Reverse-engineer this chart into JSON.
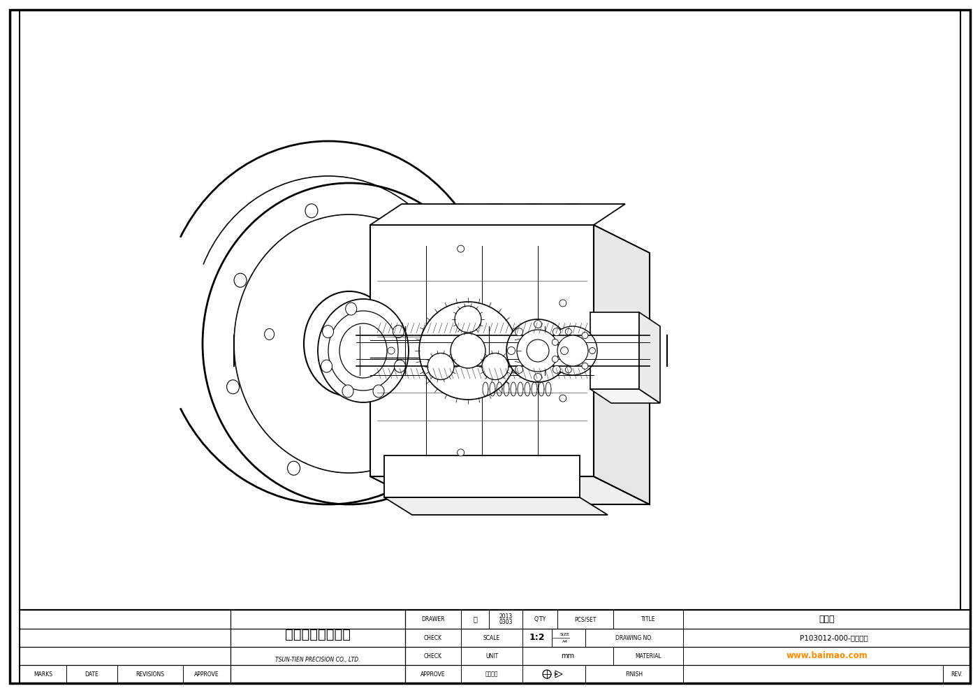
{
  "bg_color": "#ffffff",
  "line_color": "#000000",
  "text_color": "#000000",
  "watermark_color": "#ff8c00",
  "fig_width": 14.03,
  "fig_height": 9.92,
  "dpi": 100,
  "company_name_cn": "村田精密有限公司",
  "company_name_en": "TSUN-TIEN PRECISION CO., LTD.",
  "drawer_label": "DRAWER",
  "drawer_name": "林",
  "drawer_date_1": "2013",
  "drawer_date_2": "0303",
  "qty_label": "Q'TY",
  "pcs_set_label": "PCS/SET",
  "title_label": "TITLE",
  "title_value": "爆炸圖",
  "check_label": "CHECK",
  "scale_label": "SCALE",
  "scale_value": "1:2",
  "size_label": "SIZE",
  "size_value": "A4",
  "drawing_no_label": "DRAWING NO.",
  "drawing_no_value": "P103012-000-立體剖視",
  "unit_label": "UNIT",
  "unit_value": "mm",
  "material_label": "MATERIAL",
  "approve_label": "APPROVE",
  "view_angle_label": "視圖角法",
  "finish_label": "FINISH",
  "rev_label": "REV.",
  "marks_label": "MARKS",
  "date_label": "DATE",
  "revisions_label": "REVISIONS",
  "approve2_label": "APPROVE",
  "watermark": "www.baimao.com"
}
